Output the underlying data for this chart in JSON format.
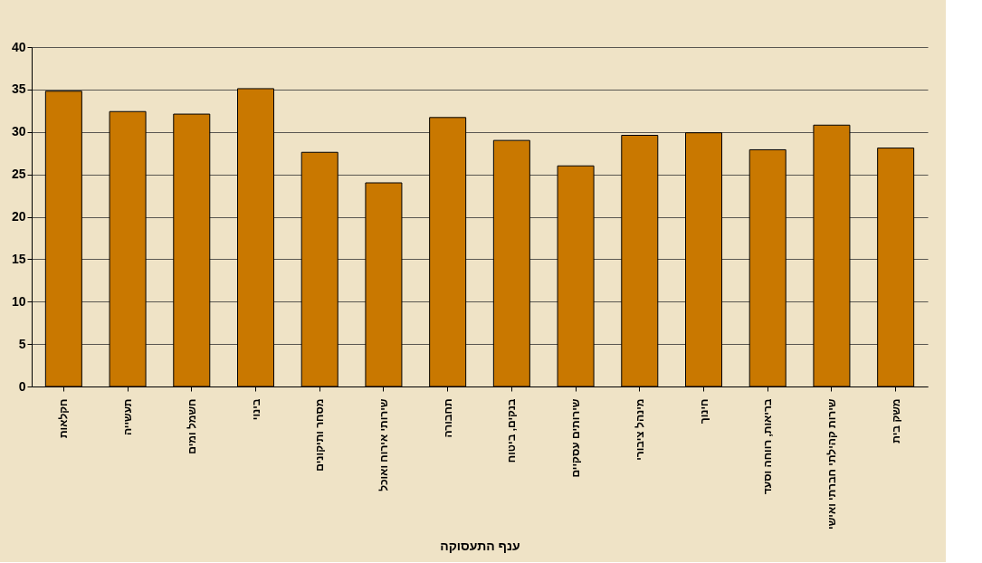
{
  "chart_data": {
    "type": "bar",
    "xlabel": "ענף התעסוקה",
    "categories": [
      "חקלאות",
      "תעשייה",
      "חשמל ומים",
      "בינוי",
      "מסחר ותיקונים",
      "שירותי אירוח ואוכל",
      "תחבורה",
      "בנקים, ביטוח",
      "שירותים עסקיים",
      "מינהל ציבורי",
      "חינוך",
      "בריאות, רווחה וסעד",
      "שירות קהילתי חברתי ואישי",
      "משק בית"
    ],
    "values": [
      34.8,
      32.4,
      32.1,
      35.1,
      27.6,
      24.0,
      31.7,
      29.0,
      26.0,
      29.6,
      29.9,
      27.9,
      30.8,
      28.1
    ],
    "color": "#c97800",
    "ylim": [
      0,
      40
    ],
    "yticks": [
      0,
      5,
      10,
      15,
      20,
      25,
      30,
      35,
      40
    ],
    "grid": "y"
  }
}
